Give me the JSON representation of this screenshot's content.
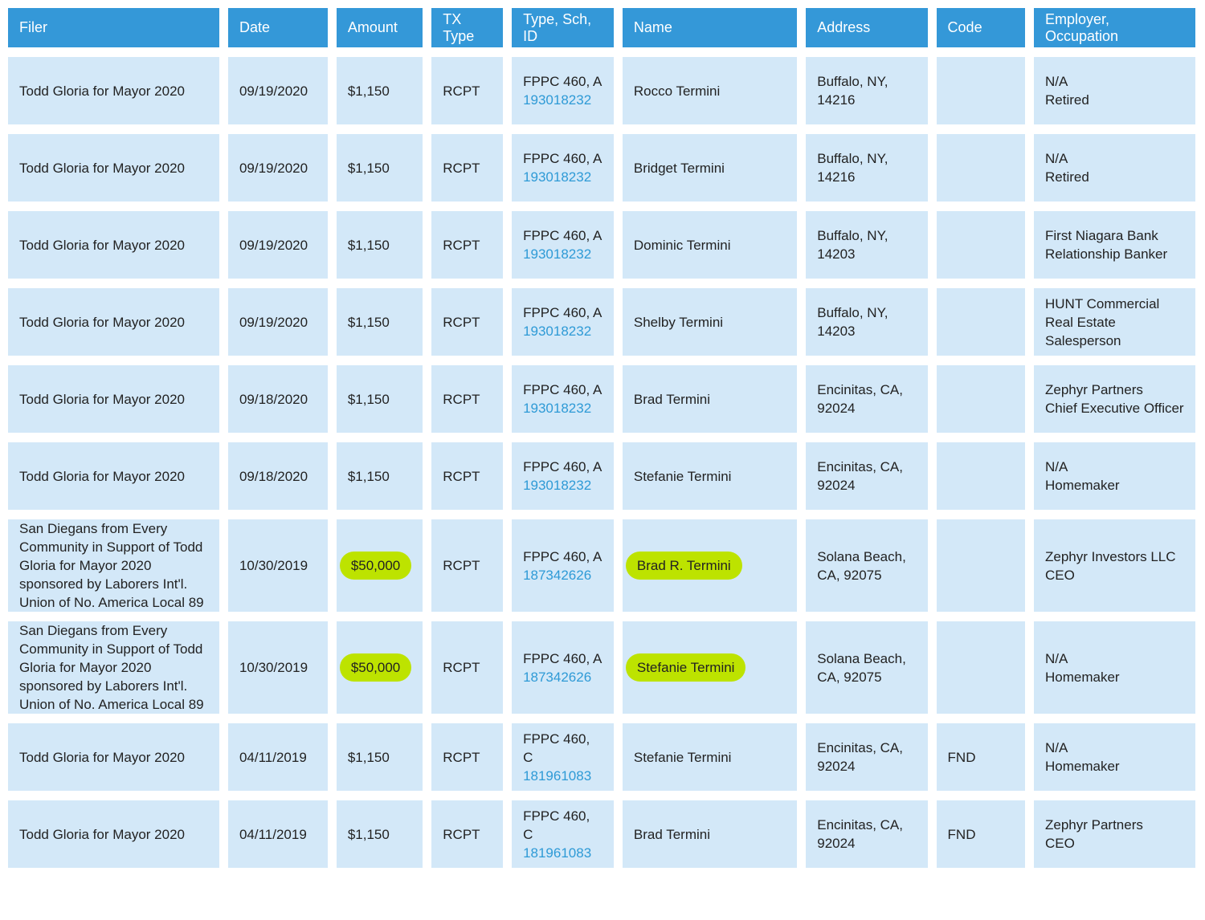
{
  "header": [
    "Filer",
    "Date",
    "Amount",
    "TX Type",
    "Type, Sch, ID",
    "Name",
    "Address",
    "Code",
    "Employer, Occupation"
  ],
  "rows": [
    {
      "filer": "Todd Gloria for Mayor 2020",
      "date": "09/19/2020",
      "amount": "$1,150",
      "tx_type": "RCPT",
      "type_sch": "FPPC 460, A",
      "id": "193018232",
      "name": "Rocco Termini",
      "address": "Buffalo, NY, 14216",
      "employer": "N/A",
      "occupation": "Retired"
    },
    {
      "filer": "Todd Gloria for Mayor 2020",
      "date": "09/19/2020",
      "amount": "$1,150",
      "tx_type": "RCPT",
      "type_sch": "FPPC 460, A",
      "id": "193018232",
      "name": "Bridget Termini",
      "address": "Buffalo, NY, 14216",
      "employer": "N/A",
      "occupation": "Retired"
    },
    {
      "filer": "Todd Gloria for Mayor 2020",
      "date": "09/19/2020",
      "amount": "$1,150",
      "tx_type": "RCPT",
      "type_sch": "FPPC 460, A",
      "id": "193018232",
      "name": "Dominic Termini",
      "address": "Buffalo, NY, 14203",
      "employer": "First Niagara Bank",
      "occupation": "Relationship Banker"
    },
    {
      "filer": "Todd Gloria for Mayor 2020",
      "date": "09/19/2020",
      "amount": "$1,150",
      "tx_type": "RCPT",
      "type_sch": "FPPC 460, A",
      "id": "193018232",
      "name": "Shelby Termini",
      "address": "Buffalo, NY, 14203",
      "employer": "HUNT Commercial Real Estate",
      "occupation": "Salesperson"
    },
    {
      "filer": "Todd Gloria for Mayor 2020",
      "date": "09/18/2020",
      "amount": "$1,150",
      "tx_type": "RCPT",
      "type_sch": "FPPC 460, A",
      "id": "193018232",
      "name": "Brad Termini",
      "address": "Encinitas, CA, 92024",
      "employer": "Zephyr Partners",
      "occupation": "Chief Executive Officer"
    },
    {
      "filer": "Todd Gloria for Mayor 2020",
      "date": "09/18/2020",
      "amount": "$1,150",
      "tx_type": "RCPT",
      "type_sch": "FPPC 460, A",
      "id": "193018232",
      "name": "Stefanie Termini",
      "address": "Encinitas, CA, 92024",
      "employer": "N/A",
      "occupation": "Homemaker"
    },
    {
      "filer": "San Diegans from Every Community in Support of Todd Gloria for Mayor 2020 sponsored by Laborers Int'l. Union of No. America Local 89",
      "date": "10/30/2019",
      "amount": "$50,000",
      "tx_type": "RCPT",
      "type_sch": "FPPC 460, A",
      "id": "187342626",
      "name": "Brad R. Termini",
      "address": "Solana Beach, CA, 92075",
      "employer": "Zephyr Investors LLC",
      "occupation": "CEO",
      "highlight": true
    },
    {
      "filer": "San Diegans from Every Community in Support of Todd Gloria for Mayor 2020 sponsored by Laborers Int'l. Union of No. America Local 89",
      "date": "10/30/2019",
      "amount": "$50,000",
      "tx_type": "RCPT",
      "type_sch": "FPPC 460, A",
      "id": "187342626",
      "name": "Stefanie Termini",
      "address": "Solana Beach, CA, 92075",
      "employer": "N/A",
      "occupation": "Homemaker",
      "highlight": true
    },
    {
      "filer": "Todd Gloria for Mayor 2020",
      "date": "04/11/2019",
      "amount": "$1,150",
      "tx_type": "RCPT",
      "type_sch": "FPPC 460, C",
      "id": "181961083",
      "name": "Stefanie Termini",
      "address": "Encinitas, CA, 92024",
      "code": "FND",
      "employer": "N/A",
      "occupation": "Homemaker"
    },
    {
      "filer": "Todd Gloria for Mayor 2020",
      "date": "04/11/2019",
      "amount": "$1,150",
      "tx_type": "RCPT",
      "type_sch": "FPPC 460, C",
      "id": "181961083",
      "name": "Brad Termini",
      "address": "Encinitas, CA, 92024",
      "code": "FND",
      "employer": "Zephyr Partners",
      "occupation": "CEO"
    }
  ]
}
